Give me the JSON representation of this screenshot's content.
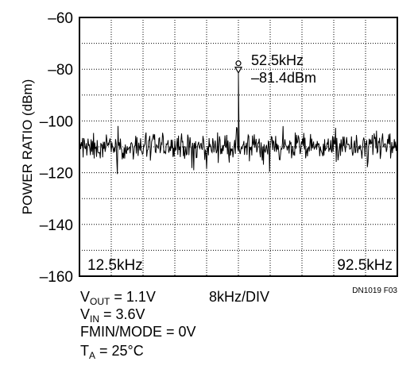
{
  "chart_data": {
    "type": "line",
    "title": "",
    "xlabel": "8kHz/DIV",
    "ylabel": "POWER RATIO (dBm)",
    "xlim": [
      12.5,
      92.5
    ],
    "ylim": [
      -160,
      -60
    ],
    "x_div_khz": 8,
    "y_ticks": [
      -60,
      -80,
      -100,
      -120,
      -140,
      -160
    ],
    "x_edge_labels": [
      "12.5kHz",
      "92.5kHz"
    ],
    "grid": true,
    "grid_style": "dotted",
    "noise_floor_dbm": -110,
    "noise_spread_dbm": 3,
    "series": [
      {
        "values_description_peak": {
          "x": 52.5,
          "y": -81.4
        }
      }
    ],
    "peak": {
      "x": 52.5,
      "y": -81.4
    },
    "annotations": {
      "freq": "52.5kHz",
      "level": "–81.4dBm"
    },
    "figure_id": "DN1019 F03"
  },
  "conditions": [
    {
      "main": "V",
      "sub": "OUT",
      "rest": " = 1.1V"
    },
    {
      "main": "V",
      "sub": "IN",
      "rest": " = 3.6V"
    },
    {
      "main": "FMIN/MODE = 0V",
      "sub": "",
      "rest": ""
    },
    {
      "main": "T",
      "sub": "A",
      "rest": " = 25°C"
    }
  ],
  "colors": {
    "trace": "#000000",
    "grid": "#000000",
    "background": "#ffffff"
  }
}
